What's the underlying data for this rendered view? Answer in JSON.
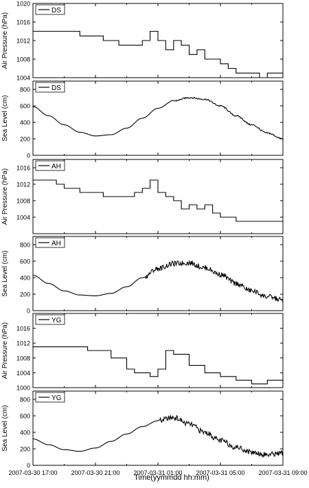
{
  "figure": {
    "xlabel": "Time(yymmdd hh:mm)",
    "x_ticks": [
      "2007-03-30 17:00",
      "2007-03-30 21:00",
      "2007-03-31 01:00",
      "2007-03-31 05:00",
      "2007-03-31 09:00"
    ]
  },
  "chart_data": [
    {
      "type": "line",
      "legend": "DS",
      "ylabel": "Air Pressure (hPa)",
      "xlim": [
        "2007-03-30 17:00",
        "2007-03-31 09:00"
      ],
      "ylim": [
        1004,
        1020
      ],
      "yticks": [
        1004,
        1008,
        1012,
        1016,
        1020
      ],
      "step": true,
      "x": [
        "2007-03-30 17:00",
        "2007-03-30 20:00",
        "2007-03-30 21:30",
        "2007-03-30 22:30",
        "2007-03-30 23:30",
        "2007-03-31 00:00",
        "2007-03-31 00:30",
        "2007-03-31 01:00",
        "2007-03-31 01:30",
        "2007-03-31 02:00",
        "2007-03-31 02:30",
        "2007-03-31 03:00",
        "2007-03-31 03:30",
        "2007-03-31 04:00",
        "2007-03-31 04:30",
        "2007-03-31 05:00",
        "2007-03-31 05:30",
        "2007-03-31 06:00",
        "2007-03-31 06:30",
        "2007-03-31 07:00",
        "2007-03-31 07:30",
        "2007-03-31 08:00",
        "2007-03-31 09:00"
      ],
      "y": [
        1014,
        1013,
        1012,
        1011,
        1011,
        1012,
        1014,
        1012,
        1010,
        1012,
        1011,
        1009,
        1010,
        1008,
        1008,
        1007,
        1006,
        1005,
        1005,
        1005,
        1004,
        1005,
        1004
      ]
    },
    {
      "type": "line",
      "legend": "DS",
      "ylabel": "Sea Level (cm)",
      "xlim": [
        "2007-03-30 17:00",
        "2007-03-31 09:00"
      ],
      "ylim": [
        0,
        900
      ],
      "yticks": [
        0,
        200,
        400,
        600,
        800
      ],
      "x": [
        "2007-03-30 17:00",
        "2007-03-30 18:00",
        "2007-03-30 19:00",
        "2007-03-30 20:00",
        "2007-03-30 21:00",
        "2007-03-30 22:00",
        "2007-03-30 23:00",
        "2007-03-31 00:00",
        "2007-03-31 01:00",
        "2007-03-31 02:00",
        "2007-03-31 03:00",
        "2007-03-31 04:00",
        "2007-03-31 05:00",
        "2007-03-31 06:00",
        "2007-03-31 07:00",
        "2007-03-31 08:00",
        "2007-03-31 09:00"
      ],
      "y": [
        590,
        480,
        370,
        280,
        235,
        250,
        330,
        450,
        570,
        660,
        700,
        680,
        600,
        480,
        370,
        270,
        200
      ]
    },
    {
      "type": "line",
      "legend": "AH",
      "ylabel": "Air Pressure (hPa)",
      "xlim": [
        "2007-03-30 17:00",
        "2007-03-31 09:00"
      ],
      "ylim": [
        1000,
        1018
      ],
      "yticks": [
        1004,
        1008,
        1012,
        1016
      ],
      "step": true,
      "x": [
        "2007-03-30 17:00",
        "2007-03-30 18:30",
        "2007-03-30 19:00",
        "2007-03-30 20:00",
        "2007-03-30 21:30",
        "2007-03-30 22:30",
        "2007-03-30 23:30",
        "2007-03-31 00:00",
        "2007-03-31 00:30",
        "2007-03-31 01:00",
        "2007-03-31 01:30",
        "2007-03-31 02:00",
        "2007-03-31 02:30",
        "2007-03-31 03:00",
        "2007-03-31 03:30",
        "2007-03-31 04:00",
        "2007-03-31 04:30",
        "2007-03-31 05:00",
        "2007-03-31 06:00",
        "2007-03-31 09:00"
      ],
      "y": [
        1013,
        1012,
        1011,
        1010,
        1009,
        1009,
        1010,
        1011,
        1013,
        1010,
        1009,
        1008,
        1006,
        1007,
        1006,
        1007,
        1005,
        1004,
        1003,
        1003
      ]
    },
    {
      "type": "line",
      "legend": "AH",
      "ylabel": "Sea Level (cm)",
      "xlim": [
        "2007-03-30 17:00",
        "2007-03-31 09:00"
      ],
      "ylim": [
        0,
        900
      ],
      "yticks": [
        0,
        200,
        400,
        600,
        800
      ],
      "x": [
        "2007-03-30 17:00",
        "2007-03-30 18:00",
        "2007-03-30 19:00",
        "2007-03-30 20:00",
        "2007-03-30 21:00",
        "2007-03-30 22:00",
        "2007-03-30 23:00",
        "2007-03-31 00:00",
        "2007-03-31 01:00",
        "2007-03-31 02:00",
        "2007-03-31 03:00",
        "2007-03-31 04:00",
        "2007-03-31 05:00",
        "2007-03-31 06:00",
        "2007-03-31 07:00",
        "2007-03-31 08:00",
        "2007-03-31 09:00"
      ],
      "y": [
        430,
        330,
        240,
        190,
        180,
        210,
        290,
        400,
        510,
        570,
        580,
        520,
        440,
        330,
        240,
        170,
        130
      ]
    },
    {
      "type": "line",
      "legend": "YG",
      "ylabel": "Air Pressure (hPa)",
      "xlim": [
        "2007-03-30 17:00",
        "2007-03-31 09:00"
      ],
      "ylim": [
        1000,
        1020
      ],
      "yticks": [
        1000,
        1004,
        1008,
        1012,
        1016
      ],
      "step": true,
      "x": [
        "2007-03-30 17:00",
        "2007-03-30 20:30",
        "2007-03-30 22:00",
        "2007-03-30 23:00",
        "2007-03-30 23:30",
        "2007-03-31 00:30",
        "2007-03-31 01:00",
        "2007-03-31 01:30",
        "2007-03-31 02:00",
        "2007-03-31 03:00",
        "2007-03-31 04:00",
        "2007-03-31 05:00",
        "2007-03-31 06:00",
        "2007-03-31 07:00",
        "2007-03-31 08:00",
        "2007-03-31 09:00"
      ],
      "y": [
        1011,
        1010,
        1008,
        1005,
        1004,
        1003,
        1005,
        1010,
        1009,
        1006,
        1004,
        1003,
        1002,
        1001,
        1002,
        1001
      ]
    },
    {
      "type": "line",
      "legend": "YG",
      "ylabel": "Sea Level (cm)",
      "xlim": [
        "2007-03-30 17:00",
        "2007-03-31 09:00"
      ],
      "ylim": [
        0,
        900
      ],
      "yticks": [
        0,
        200,
        400,
        600,
        800
      ],
      "x": [
        "2007-03-30 17:00",
        "2007-03-30 18:00",
        "2007-03-30 19:00",
        "2007-03-30 20:00",
        "2007-03-30 21:00",
        "2007-03-30 22:00",
        "2007-03-30 23:00",
        "2007-03-31 00:00",
        "2007-03-31 01:00",
        "2007-03-31 02:00",
        "2007-03-31 03:00",
        "2007-03-31 04:00",
        "2007-03-31 05:00",
        "2007-03-31 06:00",
        "2007-03-31 07:00",
        "2007-03-31 08:00",
        "2007-03-31 09:00"
      ],
      "y": [
        320,
        250,
        190,
        170,
        210,
        290,
        380,
        470,
        540,
        580,
        500,
        400,
        300,
        220,
        160,
        130,
        150
      ]
    }
  ]
}
